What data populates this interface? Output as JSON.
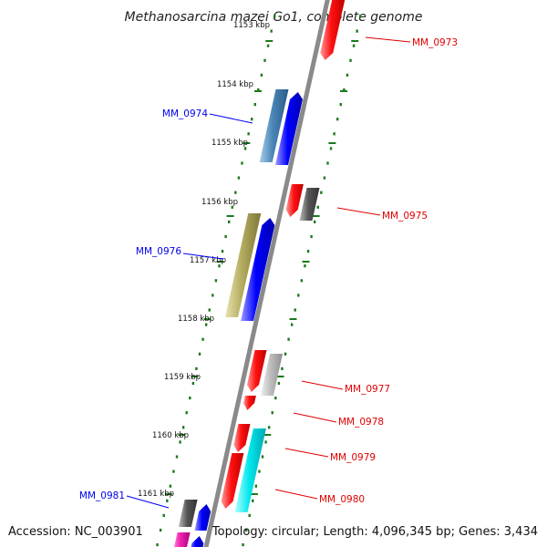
{
  "title": "Methanosarcina mazei Go1, complete genome",
  "footer": {
    "accession": "Accession: NC_003901",
    "summary": "Topology: circular; Length: 4,096,345 bp; Genes: 3,434"
  },
  "ruler": {
    "unit": "kbp",
    "labels": [
      "1153 kbp",
      "1154 kbp",
      "1155 kbp",
      "1156 kbp",
      "1157 kbp",
      "1158 kbp",
      "1159 kbp",
      "1160 kbp",
      "1161 kbp"
    ]
  },
  "colors": {
    "forward_strand": "#0000ee",
    "reverse_strand": "#e00000",
    "backbone": "#8a8a8a",
    "tick": "#1a7a1a",
    "gray_gene": "#555555",
    "light_gray_gene": "#b8b8b8",
    "steel_blue_gene": "#4a86b8",
    "khaki_gene": "#b5ad60",
    "cyan_gene": "#00e0e8",
    "magenta_gene": "#e020a0"
  },
  "gene_labels": [
    {
      "name": "MM_0973",
      "strand": "reverse"
    },
    {
      "name": "MM_0974",
      "strand": "forward"
    },
    {
      "name": "MM_0975",
      "strand": "reverse"
    },
    {
      "name": "MM_0976",
      "strand": "forward"
    },
    {
      "name": "MM_0977",
      "strand": "reverse"
    },
    {
      "name": "MM_0978",
      "strand": "reverse"
    },
    {
      "name": "MM_0979",
      "strand": "reverse"
    },
    {
      "name": "MM_0980",
      "strand": "reverse"
    },
    {
      "name": "MM_0981",
      "strand": "forward"
    }
  ]
}
